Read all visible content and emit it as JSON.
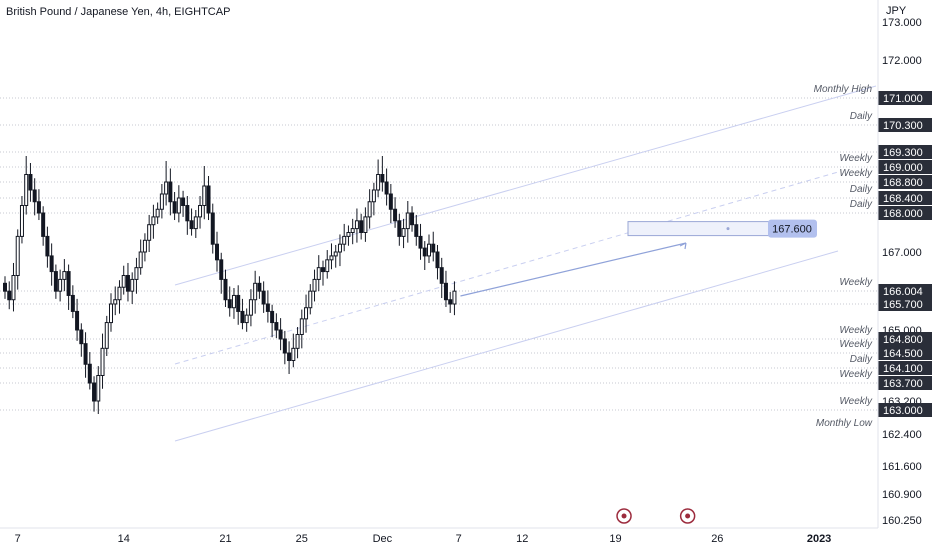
{
  "header": {
    "title": "British Pound / Japanese Yen, 4h, EIGHTCAP"
  },
  "colors": {
    "candle": "#131722",
    "axis_text": "#131722",
    "level_label_bg": "#2a2e39",
    "level_label_text": "#ffffff",
    "channel_line": "#c9cff0",
    "grid_dotted": "#c7cad1",
    "target_box_fill": "#eef1fb",
    "target_box_stroke": "#9aa7d6",
    "target_label_bg": "#b2c0ee",
    "arrow": "#8fa2d9",
    "event_marker": "#9c2b3d"
  },
  "chart_data": {
    "type": "candlestick",
    "symbol": "British Pound / Japanese Yen",
    "interval": "4h",
    "broker": "EIGHTCAP",
    "currency_label": "JPY",
    "y_ticks": [
      "173.000",
      "172.000",
      "167.000",
      "165.000",
      "163.200",
      "162.400",
      "161.600",
      "160.900",
      "160.250"
    ],
    "x_ticks": [
      {
        "label": "7",
        "index": 3
      },
      {
        "label": "14",
        "index": 28
      },
      {
        "label": "21",
        "index": 52
      },
      {
        "label": "25",
        "index": 70
      },
      {
        "label": "Dec",
        "index": 89
      },
      {
        "label": "7",
        "index": 107
      },
      {
        "label": "12",
        "index": 122
      },
      {
        "label": "19",
        "index": 144
      },
      {
        "label": "26",
        "index": 168
      },
      {
        "label": "2023",
        "index": 192
      }
    ],
    "levels": [
      {
        "price": 171.0,
        "label": "171.000",
        "note": "Monthly High"
      },
      {
        "price": 170.3,
        "label": "170.300",
        "note": "Daily"
      },
      {
        "price": 169.3,
        "label": "169.300",
        "note": ""
      },
      {
        "price": 169.0,
        "label": "169.000",
        "note": "Weekly"
      },
      {
        "price": 168.8,
        "label": "168.800",
        "note": "Weekly"
      },
      {
        "price": 168.4,
        "label": "168.400",
        "note": "Daily"
      },
      {
        "price": 168.0,
        "label": "168.000",
        "note": "Daily"
      },
      {
        "price": 166.004,
        "label": "166.004",
        "note": "Weekly"
      },
      {
        "price": 165.7,
        "label": "165.700",
        "note": ""
      },
      {
        "price": 164.8,
        "label": "164.800",
        "note": "Weekly"
      },
      {
        "price": 164.5,
        "label": "164.500",
        "note": "Weekly"
      },
      {
        "price": 164.1,
        "label": "164.100",
        "note": "Daily"
      },
      {
        "price": 163.7,
        "label": "163.700",
        "note": "Weekly"
      },
      {
        "price": 163.0,
        "label": "163.000",
        "note": "Weekly"
      }
    ],
    "extra_notes": [
      {
        "price": 162.7,
        "note": "Monthly Low"
      }
    ],
    "target": {
      "price": 167.6,
      "label": "167.600"
    },
    "closes": [
      166.0,
      165.8,
      166.4,
      167.4,
      168.2,
      168.9,
      168.6,
      168.3,
      168.0,
      167.4,
      166.9,
      166.5,
      166.0,
      166.3,
      166.5,
      165.9,
      165.5,
      165.0,
      164.7,
      164.2,
      163.7,
      163.2,
      163.9,
      164.6,
      165.2,
      165.7,
      165.8,
      166.1,
      166.4,
      166.0,
      166.3,
      166.6,
      167.0,
      167.3,
      167.7,
      167.9,
      168.1,
      168.5,
      168.8,
      168.3,
      168.0,
      168.4,
      168.2,
      167.8,
      167.6,
      167.9,
      168.2,
      168.7,
      168.0,
      167.2,
      166.8,
      166.3,
      165.8,
      165.6,
      165.9,
      165.5,
      165.2,
      165.4,
      165.8,
      166.2,
      166.0,
      165.7,
      165.5,
      165.2,
      165.0,
      164.8,
      164.5,
      164.3,
      164.6,
      164.9,
      165.3,
      165.6,
      166.0,
      166.3,
      166.6,
      166.5,
      166.8,
      166.9,
      167.0,
      167.2,
      167.4,
      167.5,
      167.6,
      167.8,
      167.5,
      167.9,
      168.3,
      168.6,
      168.9,
      168.8,
      168.5,
      168.1,
      167.8,
      167.4,
      167.6,
      168.0,
      167.7,
      167.4,
      167.1,
      166.9,
      167.2,
      167.0,
      166.6,
      166.2,
      165.8,
      165.7,
      166.0
    ],
    "events": [
      {
        "index": 146
      },
      {
        "index": 161
      }
    ]
  }
}
